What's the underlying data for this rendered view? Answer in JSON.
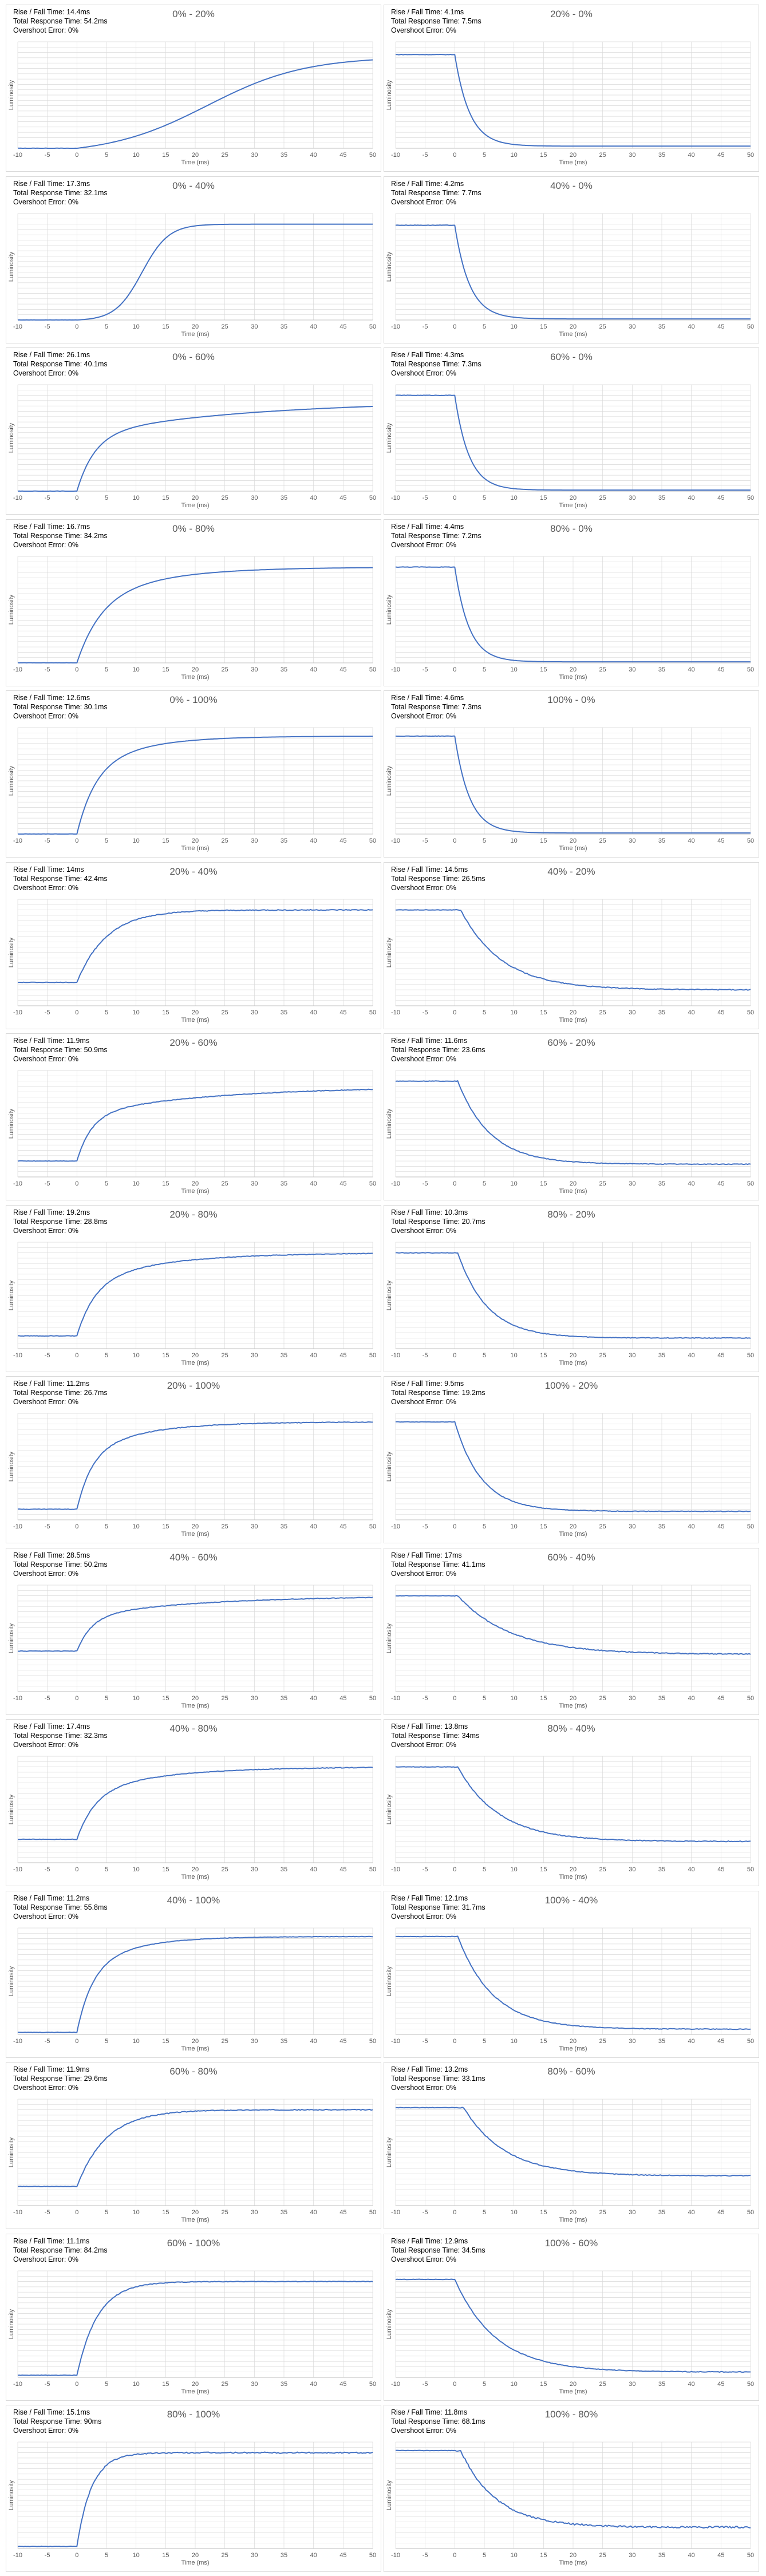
{
  "chart_data": [
    {
      "type": "line",
      "title": "0% - 20%",
      "xlabel": "Time (ms)",
      "ylabel": "Luminosity",
      "rise_fall": "Rise / Fall Time: 14.4ms",
      "total": "Total Response Time: 54.2ms",
      "overshoot": "Overshoot Error: 0%",
      "direction": "rise",
      "pre": 0.0,
      "lag": 0,
      "curve": "s",
      "k": 33,
      "mid": 22,
      "final": 0.86,
      "noise": 0.0
    },
    {
      "type": "line",
      "title": "20% - 0%",
      "xlabel": "Time (ms)",
      "ylabel": "Luminosity",
      "rise_fall": "Rise / Fall Time: 4.1ms",
      "total": "Total Response Time: 7.5ms",
      "overshoot": "Overshoot Error: 0%",
      "direction": "fall",
      "pre": 0.88,
      "lag": 0,
      "curve": "exp",
      "k": 2.5,
      "mid": 0,
      "final": 0.02,
      "noise": 0.0
    },
    {
      "type": "line",
      "title": "0% - 40%",
      "xlabel": "Time (ms)",
      "ylabel": "Luminosity",
      "rise_fall": "Rise / Fall Time: 17.3ms",
      "total": "Total Response Time: 32.1ms",
      "overshoot": "Overshoot Error: 0%",
      "direction": "rise",
      "pre": 0.0,
      "lag": 0,
      "curve": "s",
      "k": 9,
      "mid": 11,
      "final": 0.9,
      "noise": 0.0
    },
    {
      "type": "line",
      "title": "40% - 0%",
      "xlabel": "Time (ms)",
      "ylabel": "Luminosity",
      "rise_fall": "Rise / Fall Time: 4.2ms",
      "total": "Total Response Time: 7.7ms",
      "overshoot": "Overshoot Error: 0%",
      "direction": "fall",
      "pre": 0.89,
      "lag": 0,
      "curve": "exp",
      "k": 2.5,
      "mid": 0,
      "final": 0.01,
      "noise": 0.0
    },
    {
      "type": "line",
      "title": "0% - 60%",
      "xlabel": "Time (ms)",
      "ylabel": "Luminosity",
      "rise_fall": "Rise / Fall Time: 26.1ms",
      "total": "Total Response Time: 40.1ms",
      "overshoot": "Overshoot Error: 0%",
      "direction": "rise",
      "pre": 0.0,
      "lag": 0,
      "curve": "mix",
      "k": 3,
      "mid": 28,
      "final": 0.85,
      "noise": 0.0
    },
    {
      "type": "line",
      "title": "60% - 0%",
      "xlabel": "Time (ms)",
      "ylabel": "Luminosity",
      "rise_fall": "Rise / Fall Time: 4.3ms",
      "total": "Total Response Time: 7.3ms",
      "overshoot": "Overshoot Error: 0%",
      "direction": "fall",
      "pre": 0.9,
      "lag": 0,
      "curve": "exp",
      "k": 2.4,
      "mid": 0,
      "final": 0.01,
      "noise": 0.0
    },
    {
      "type": "line",
      "title": "0% - 80%",
      "xlabel": "Time (ms)",
      "ylabel": "Luminosity",
      "rise_fall": "Rise / Fall Time: 16.7ms",
      "total": "Total Response Time: 34.2ms",
      "overshoot": "Overshoot Error: 0%",
      "direction": "rise",
      "pre": 0.0,
      "lag": 0,
      "curve": "mix",
      "k": 4,
      "mid": 12,
      "final": 0.9,
      "noise": 0.0
    },
    {
      "type": "line",
      "title": "80% - 0%",
      "xlabel": "Time (ms)",
      "ylabel": "Luminosity",
      "rise_fall": "Rise / Fall Time: 4.4ms",
      "total": "Total Response Time: 7.2ms",
      "overshoot": "Overshoot Error: 0%",
      "direction": "fall",
      "pre": 0.9,
      "lag": 0,
      "curve": "exp",
      "k": 2.4,
      "mid": 0,
      "final": 0.01,
      "noise": 0.0
    },
    {
      "type": "line",
      "title": "0% - 100%",
      "xlabel": "Time (ms)",
      "ylabel": "Luminosity",
      "rise_fall": "Rise / Fall Time: 12.6ms",
      "total": "Total Response Time: 30.1ms",
      "overshoot": "Overshoot Error: 0%",
      "direction": "rise",
      "pre": 0.0,
      "lag": 0,
      "curve": "mix",
      "k": 3,
      "mid": 9,
      "final": 0.92,
      "noise": 0.0
    },
    {
      "type": "line",
      "title": "100% - 0%",
      "xlabel": "Time (ms)",
      "ylabel": "Luminosity",
      "rise_fall": "Rise / Fall Time: 4.6ms",
      "total": "Total Response Time: 7.3ms",
      "overshoot": "Overshoot Error: 0%",
      "direction": "fall",
      "pre": 0.92,
      "lag": 0,
      "curve": "exp",
      "k": 2.5,
      "mid": 0,
      "final": 0.01,
      "noise": 0.0
    },
    {
      "type": "line",
      "title": "20% - 40%",
      "xlabel": "Time (ms)",
      "ylabel": "Luminosity",
      "rise_fall": "Rise / Fall Time: 14ms",
      "total": "Total Response Time: 42.4ms",
      "overshoot": "Overshoot Error: 0%",
      "direction": "rise",
      "pre": 0.22,
      "lag": 0,
      "curve": "exp",
      "k": 5,
      "mid": 0,
      "final": 0.9,
      "noise": 0.004
    },
    {
      "type": "line",
      "title": "40% - 20%",
      "xlabel": "Time (ms)",
      "ylabel": "Luminosity",
      "rise_fall": "Rise / Fall Time: 14.5ms",
      "total": "Total Response Time: 26.5ms",
      "overshoot": "Overshoot Error: 0%",
      "direction": "fall",
      "pre": 0.9,
      "lag": 1,
      "curve": "exp",
      "k": 7,
      "mid": 0,
      "final": 0.15,
      "noise": 0.004
    },
    {
      "type": "line",
      "title": "20% - 60%",
      "xlabel": "Time (ms)",
      "ylabel": "Luminosity",
      "rise_fall": "Rise / Fall Time: 11.9ms",
      "total": "Total Response Time: 50.9ms",
      "overshoot": "Overshoot Error: 0%",
      "direction": "rise",
      "pre": 0.15,
      "lag": 0,
      "curve": "mix",
      "k": 2.5,
      "mid": 22,
      "final": 0.85,
      "noise": 0.003
    },
    {
      "type": "line",
      "title": "60% - 20%",
      "xlabel": "Time (ms)",
      "ylabel": "Luminosity",
      "rise_fall": "Rise / Fall Time: 11.6ms",
      "total": "Total Response Time: 23.6ms",
      "overshoot": "Overshoot Error: 0%",
      "direction": "fall",
      "pre": 0.9,
      "lag": 0.5,
      "curve": "exp",
      "k": 5.5,
      "mid": 0,
      "final": 0.12,
      "noise": 0.003
    },
    {
      "type": "line",
      "title": "20% - 80%",
      "xlabel": "Time (ms)",
      "ylabel": "Luminosity",
      "rise_fall": "Rise / Fall Time: 19.2ms",
      "total": "Total Response Time: 28.8ms",
      "overshoot": "Overshoot Error: 0%",
      "direction": "rise",
      "pre": 0.12,
      "lag": 0,
      "curve": "mix",
      "k": 3,
      "mid": 13,
      "final": 0.9,
      "noise": 0.003
    },
    {
      "type": "line",
      "title": "80% - 20%",
      "xlabel": "Time (ms)",
      "ylabel": "Luminosity",
      "rise_fall": "Rise / Fall Time: 10.3ms",
      "total": "Total Response Time: 20.7ms",
      "overshoot": "Overshoot Error: 0%",
      "direction": "fall",
      "pre": 0.9,
      "lag": 0.5,
      "curve": "exp",
      "k": 5,
      "mid": 0,
      "final": 0.1,
      "noise": 0.003
    },
    {
      "type": "line",
      "title": "20% - 100%",
      "xlabel": "Time (ms)",
      "ylabel": "Luminosity",
      "rise_fall": "Rise / Fall Time: 11.2ms",
      "total": "Total Response Time: 26.7ms",
      "overshoot": "Overshoot Error: 0%",
      "direction": "rise",
      "pre": 0.1,
      "lag": 0,
      "curve": "mix",
      "k": 2.5,
      "mid": 10,
      "final": 0.92,
      "noise": 0.003
    },
    {
      "type": "line",
      "title": "100% - 20%",
      "xlabel": "Time (ms)",
      "ylabel": "Luminosity",
      "rise_fall": "Rise / Fall Time: 9.5ms",
      "total": "Total Response Time: 19.2ms",
      "overshoot": "Overshoot Error: 0%",
      "direction": "fall",
      "pre": 0.92,
      "lag": 0,
      "curve": "exp",
      "k": 4.5,
      "mid": 0,
      "final": 0.08,
      "noise": 0.003
    },
    {
      "type": "line",
      "title": "40% - 60%",
      "xlabel": "Time (ms)",
      "ylabel": "Luminosity",
      "rise_fall": "Rise / Fall Time: 28.5ms",
      "total": "Total Response Time: 50.2ms",
      "overshoot": "Overshoot Error: 0%",
      "direction": "rise",
      "pre": 0.38,
      "lag": 0,
      "curve": "mix",
      "k": 2.5,
      "mid": 20,
      "final": 0.9,
      "noise": 0.003
    },
    {
      "type": "line",
      "title": "60% - 40%",
      "xlabel": "Time (ms)",
      "ylabel": "Luminosity",
      "rise_fall": "Rise / Fall Time: 17ms",
      "total": "Total Response Time: 41.1ms",
      "overshoot": "Overshoot Error: 0%",
      "direction": "fall",
      "pre": 0.9,
      "lag": 0.5,
      "curve": "exp",
      "k": 9,
      "mid": 0,
      "final": 0.35,
      "noise": 0.004
    },
    {
      "type": "line",
      "title": "40% - 80%",
      "xlabel": "Time (ms)",
      "ylabel": "Luminosity",
      "rise_fall": "Rise / Fall Time: 17.4ms",
      "total": "Total Response Time: 32.3ms",
      "overshoot": "Overshoot Error: 0%",
      "direction": "rise",
      "pre": 0.22,
      "lag": 0,
      "curve": "mix",
      "k": 3,
      "mid": 13,
      "final": 0.9,
      "noise": 0.003
    },
    {
      "type": "line",
      "title": "80% - 40%",
      "xlabel": "Time (ms)",
      "ylabel": "Luminosity",
      "rise_fall": "Rise / Fall Time: 13.8ms",
      "total": "Total Response Time: 34ms",
      "overshoot": "Overshoot Error: 0%",
      "direction": "fall",
      "pre": 0.9,
      "lag": 0.5,
      "curve": "exp",
      "k": 7,
      "mid": 0,
      "final": 0.2,
      "noise": 0.004
    },
    {
      "type": "line",
      "title": "40% - 100%",
      "xlabel": "Time (ms)",
      "ylabel": "Luminosity",
      "rise_fall": "Rise / Fall Time: 11.2ms",
      "total": "Total Response Time: 55.8ms",
      "overshoot": "Overshoot Error: 0%",
      "direction": "rise",
      "pre": 0.02,
      "lag": 0,
      "curve": "mix",
      "k": 2.5,
      "mid": 8,
      "final": 0.92,
      "noise": 0.002
    },
    {
      "type": "line",
      "title": "100% - 40%",
      "xlabel": "Time (ms)",
      "ylabel": "Luminosity",
      "rise_fall": "Rise / Fall Time: 12.1ms",
      "total": "Total Response Time: 31.7ms",
      "overshoot": "Overshoot Error: 0%",
      "direction": "fall",
      "pre": 0.92,
      "lag": 0.5,
      "curve": "exp",
      "k": 6,
      "mid": 0,
      "final": 0.05,
      "noise": 0.003
    },
    {
      "type": "line",
      "title": "60% - 80%",
      "xlabel": "Time (ms)",
      "ylabel": "Luminosity",
      "rise_fall": "Rise / Fall Time: 11.9ms",
      "total": "Total Response Time: 29.6ms",
      "overshoot": "Overshoot Error: 0%",
      "direction": "rise",
      "pre": 0.18,
      "lag": 0,
      "curve": "exp",
      "k": 5,
      "mid": 0,
      "final": 0.9,
      "noise": 0.004
    },
    {
      "type": "line",
      "title": "80% - 60%",
      "xlabel": "Time (ms)",
      "ylabel": "Luminosity",
      "rise_fall": "Rise / Fall Time: 13.2ms",
      "total": "Total Response Time: 33.1ms",
      "overshoot": "Overshoot Error: 0%",
      "direction": "fall",
      "pre": 0.92,
      "lag": 1.5,
      "curve": "exp",
      "k": 7,
      "mid": 0,
      "final": 0.28,
      "noise": 0.004
    },
    {
      "type": "line",
      "title": "60% - 100%",
      "xlabel": "Time (ms)",
      "ylabel": "Luminosity",
      "rise_fall": "Rise / Fall Time: 11.1ms",
      "total": "Total Response Time: 84.2ms",
      "overshoot": "Overshoot Error: 0%",
      "direction": "rise",
      "pre": 0.02,
      "lag": 0,
      "curve": "exp",
      "k": 3.5,
      "mid": 0,
      "final": 0.9,
      "noise": 0.003
    },
    {
      "type": "line",
      "title": "100% - 60%",
      "xlabel": "Time (ms)",
      "ylabel": "Luminosity",
      "rise_fall": "Rise / Fall Time: 12.9ms",
      "total": "Total Response Time: 34.5ms",
      "overshoot": "Overshoot Error: 0%",
      "direction": "fall",
      "pre": 0.92,
      "lag": 0,
      "curve": "exp",
      "k": 7,
      "mid": 0,
      "final": 0.05,
      "noise": 0.003
    },
    {
      "type": "line",
      "title": "80% - 100%",
      "xlabel": "Time (ms)",
      "ylabel": "Luminosity",
      "rise_fall": "Rise / Fall Time: 15.1ms",
      "total": "Total Response Time: 90ms",
      "overshoot": "Overshoot Error: 0%",
      "direction": "rise",
      "pre": 0.02,
      "lag": 0,
      "curve": "exp",
      "k": 2.5,
      "mid": 0,
      "final": 0.9,
      "noise": 0.006
    },
    {
      "type": "line",
      "title": "100% - 80%",
      "xlabel": "Time (ms)",
      "ylabel": "Luminosity",
      "rise_fall": "Rise / Fall Time: 11.8ms",
      "total": "Total Response Time: 68.1ms",
      "overshoot": "Overshoot Error: 0%",
      "direction": "fall",
      "pre": 0.92,
      "lag": 1,
      "curve": "exp",
      "k": 6,
      "mid": 0,
      "final": 0.2,
      "noise": 0.008
    }
  ],
  "axes": {
    "x_ticks": [
      -10,
      -5,
      0,
      5,
      10,
      15,
      20,
      25,
      30,
      35,
      40,
      45,
      50
    ],
    "xlim": [
      -10,
      50
    ],
    "ylim": [
      0,
      1
    ],
    "y_tick_labels": false,
    "grid": true,
    "line_color": "#4472c4",
    "grid_color": "#d9d9d9"
  }
}
